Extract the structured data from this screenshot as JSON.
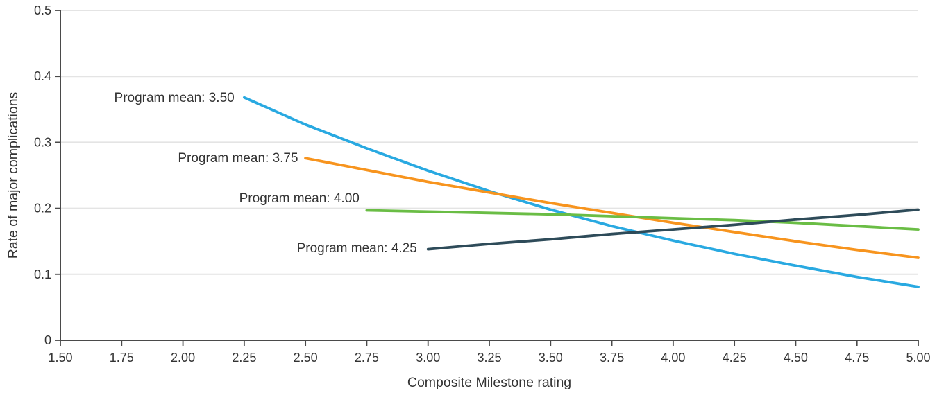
{
  "chart_data": {
    "type": "line",
    "title": "",
    "xlabel": "Composite Milestone rating",
    "ylabel": "Rate of major complications",
    "xlim": [
      1.5,
      5.0
    ],
    "ylim": [
      0,
      0.5
    ],
    "grid": "horizontal",
    "legend_position": "inline-annotations",
    "xtick_labels": [
      "1.50",
      "1.75",
      "2.00",
      "2.25",
      "2.50",
      "2.75",
      "3.00",
      "3.25",
      "3.50",
      "3.75",
      "4.00",
      "4.25",
      "4.50",
      "4.75",
      "5.00"
    ],
    "ytick_labels": [
      "0",
      "0.1",
      "0.2",
      "0.3",
      "0.4",
      "0.5"
    ],
    "colors": {
      "axis": "#4a4a4a",
      "grid": "#e4e4e4",
      "text": "#333333"
    },
    "series": [
      {
        "name": "Program mean: 3.50",
        "color": "#29a9e1",
        "x": [
          2.25,
          2.5,
          2.75,
          3.0,
          3.25,
          3.5,
          3.75,
          4.0,
          4.25,
          4.5,
          4.75,
          5.0
        ],
        "y": [
          0.368,
          0.327,
          0.291,
          0.257,
          0.226,
          0.198,
          0.173,
          0.151,
          0.131,
          0.113,
          0.096,
          0.081
        ],
        "label_anchor": {
          "x": 2.21,
          "y": 0.368
        }
      },
      {
        "name": "Program mean: 3.75",
        "color": "#f7941e",
        "x": [
          2.5,
          2.75,
          3.0,
          3.25,
          3.5,
          3.75,
          4.0,
          4.25,
          4.5,
          4.75,
          5.0
        ],
        "y": [
          0.276,
          0.258,
          0.24,
          0.224,
          0.208,
          0.193,
          0.178,
          0.164,
          0.15,
          0.137,
          0.125
        ],
        "label_anchor": {
          "x": 2.47,
          "y": 0.277
        }
      },
      {
        "name": "Program mean: 4.00",
        "color": "#6abd45",
        "x": [
          2.75,
          3.0,
          3.25,
          3.5,
          3.75,
          4.0,
          4.25,
          4.5,
          4.75,
          5.0
        ],
        "y": [
          0.197,
          0.195,
          0.193,
          0.191,
          0.188,
          0.185,
          0.182,
          0.178,
          0.173,
          0.168
        ],
        "label_anchor": {
          "x": 2.72,
          "y": 0.216
        }
      },
      {
        "name": "Program mean: 4.25",
        "color": "#2e4b59",
        "x": [
          3.0,
          3.25,
          3.5,
          3.75,
          4.0,
          4.25,
          4.5,
          4.75,
          5.0
        ],
        "y": [
          0.138,
          0.146,
          0.153,
          0.161,
          0.168,
          0.175,
          0.183,
          0.19,
          0.198
        ],
        "label_anchor": {
          "x": 2.955,
          "y": 0.14
        }
      }
    ]
  }
}
